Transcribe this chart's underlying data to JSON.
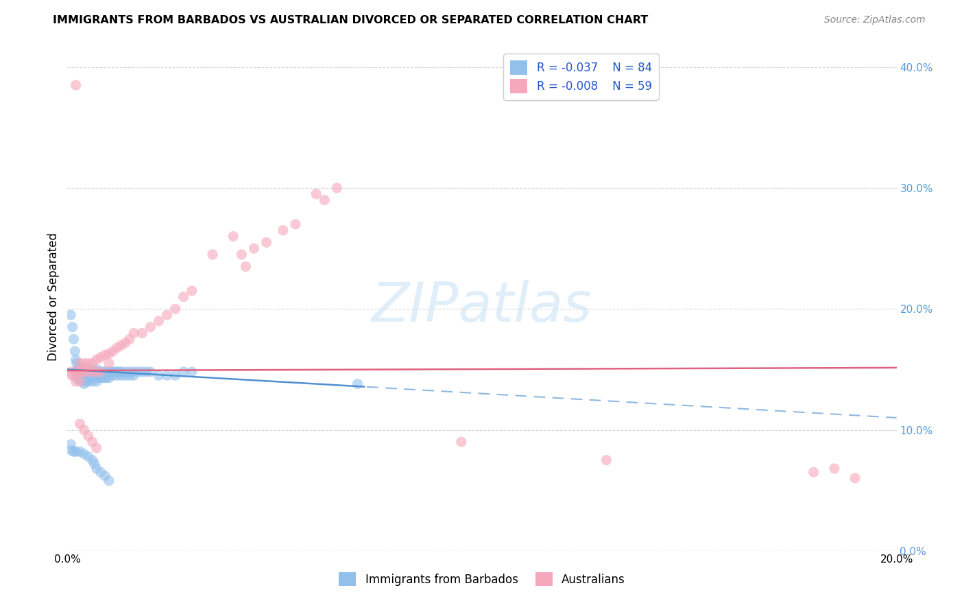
{
  "title": "IMMIGRANTS FROM BARBADOS VS AUSTRALIAN DIVORCED OR SEPARATED CORRELATION CHART",
  "source": "Source: ZipAtlas.com",
  "ylabel": "Divorced or Separated",
  "xlim": [
    0.0,
    0.2
  ],
  "ylim": [
    0.0,
    0.42
  ],
  "xticks": [
    0.0,
    0.04,
    0.08,
    0.12,
    0.16,
    0.2
  ],
  "yticks": [
    0.0,
    0.1,
    0.2,
    0.3,
    0.4
  ],
  "xtick_labels": [
    "0.0%",
    "",
    "",
    "",
    "",
    "20.0%"
  ],
  "ytick_labels_right": [
    "0.0%",
    "10.0%",
    "20.0%",
    "30.0%",
    "40.0%"
  ],
  "legend_r_blue": "R = -0.037",
  "legend_n_blue": "N = 84",
  "legend_r_pink": "R = -0.008",
  "legend_n_pink": "N = 59",
  "legend_label_blue": "Immigrants from Barbados",
  "legend_label_pink": "Australians",
  "color_blue": "#92c0ec",
  "color_pink": "#f5a8bb",
  "trend_blue_solid": "#5090d0",
  "trend_blue_dashed": "#90b8e0",
  "trend_pink": "#e06080",
  "blue_x": [
    0.0008,
    0.0012,
    0.0015,
    0.0018,
    0.002,
    0.002,
    0.0022,
    0.0025,
    0.0025,
    0.003,
    0.003,
    0.003,
    0.0032,
    0.0035,
    0.0035,
    0.004,
    0.004,
    0.004,
    0.0042,
    0.0045,
    0.0045,
    0.005,
    0.005,
    0.005,
    0.0052,
    0.0055,
    0.006,
    0.006,
    0.006,
    0.0062,
    0.0065,
    0.007,
    0.007,
    0.007,
    0.0072,
    0.0075,
    0.008,
    0.008,
    0.0082,
    0.0085,
    0.009,
    0.009,
    0.0092,
    0.0095,
    0.01,
    0.01,
    0.0105,
    0.011,
    0.011,
    0.0115,
    0.012,
    0.012,
    0.0125,
    0.013,
    0.013,
    0.014,
    0.014,
    0.015,
    0.015,
    0.016,
    0.016,
    0.017,
    0.018,
    0.019,
    0.02,
    0.022,
    0.024,
    0.026,
    0.028,
    0.03,
    0.0008,
    0.001,
    0.0015,
    0.002,
    0.003,
    0.004,
    0.005,
    0.006,
    0.0065,
    0.007,
    0.008,
    0.009,
    0.01,
    0.07
  ],
  "blue_y": [
    0.195,
    0.185,
    0.175,
    0.165,
    0.158,
    0.148,
    0.155,
    0.15,
    0.142,
    0.152,
    0.148,
    0.143,
    0.15,
    0.148,
    0.14,
    0.15,
    0.145,
    0.138,
    0.148,
    0.145,
    0.14,
    0.15,
    0.145,
    0.14,
    0.148,
    0.143,
    0.15,
    0.145,
    0.14,
    0.148,
    0.143,
    0.15,
    0.145,
    0.14,
    0.148,
    0.143,
    0.148,
    0.143,
    0.148,
    0.143,
    0.148,
    0.143,
    0.148,
    0.143,
    0.148,
    0.143,
    0.148,
    0.148,
    0.145,
    0.148,
    0.148,
    0.145,
    0.148,
    0.148,
    0.145,
    0.148,
    0.145,
    0.148,
    0.145,
    0.148,
    0.145,
    0.148,
    0.148,
    0.148,
    0.148,
    0.145,
    0.145,
    0.145,
    0.148,
    0.148,
    0.088,
    0.083,
    0.082,
    0.082,
    0.082,
    0.08,
    0.078,
    0.075,
    0.072,
    0.068,
    0.065,
    0.062,
    0.058,
    0.138
  ],
  "pink_x": [
    0.0008,
    0.001,
    0.0015,
    0.002,
    0.002,
    0.0025,
    0.003,
    0.003,
    0.003,
    0.0035,
    0.004,
    0.004,
    0.0045,
    0.005,
    0.005,
    0.006,
    0.006,
    0.007,
    0.007,
    0.008,
    0.008,
    0.009,
    0.01,
    0.01,
    0.011,
    0.012,
    0.013,
    0.014,
    0.015,
    0.016,
    0.018,
    0.02,
    0.022,
    0.024,
    0.026,
    0.028,
    0.03,
    0.035,
    0.04,
    0.042,
    0.043,
    0.045,
    0.048,
    0.052,
    0.055,
    0.06,
    0.062,
    0.065,
    0.095,
    0.13,
    0.18,
    0.185,
    0.19,
    0.002,
    0.003,
    0.004,
    0.005,
    0.006,
    0.007
  ],
  "pink_y": [
    0.148,
    0.145,
    0.145,
    0.148,
    0.14,
    0.148,
    0.155,
    0.148,
    0.14,
    0.148,
    0.155,
    0.148,
    0.152,
    0.155,
    0.148,
    0.155,
    0.148,
    0.158,
    0.148,
    0.16,
    0.148,
    0.162,
    0.163,
    0.155,
    0.165,
    0.168,
    0.17,
    0.172,
    0.175,
    0.18,
    0.18,
    0.185,
    0.19,
    0.195,
    0.2,
    0.21,
    0.215,
    0.245,
    0.26,
    0.245,
    0.235,
    0.25,
    0.255,
    0.265,
    0.27,
    0.295,
    0.29,
    0.3,
    0.09,
    0.075,
    0.065,
    0.068,
    0.06,
    0.385,
    0.105,
    0.1,
    0.095,
    0.09,
    0.085
  ]
}
